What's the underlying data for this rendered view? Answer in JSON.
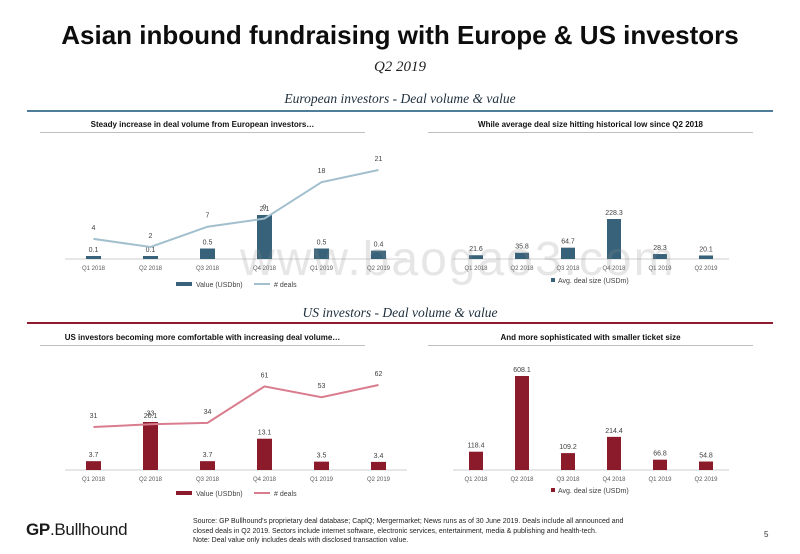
{
  "page": {
    "title": "Asian inbound fundraising with Europe & US investors",
    "subtitle": "Q2 2019",
    "watermark": "www.baogao3.com",
    "page_number": "5"
  },
  "sections": {
    "europe": {
      "title": "European investors - Deal volume & value",
      "color": "#4e7e99"
    },
    "us": {
      "title": "US investors - Deal volume & value",
      "color": "#8e1b2e"
    }
  },
  "footer": {
    "logo_bold": "GP",
    "logo_rest": ".Bullhound",
    "source_lines": [
      "Source: GP Bullhound's proprietary deal database; CapIQ; Mergermarket; News runs as of 30 June 2019. Deals include all announced and",
      "closed deals in Q2 2019. Sectors include internet software, electronic services, entertainment, media & publishing and health-tech.",
      "Note: Deal value only includes deals with disclosed transaction value."
    ]
  },
  "colors": {
    "europe_bar": "#37627a",
    "europe_line": "#a2bfce",
    "us_bar": "#8b1a2b",
    "us_line": "#d97d8e"
  },
  "chart_data": [
    {
      "id": "eu-volume",
      "type": "bar+line",
      "title": "Steady increase in deal volume from European investors…",
      "categories": [
        "Q1 2018",
        "Q2 2018",
        "Q3 2018",
        "Q4 2018",
        "Q1 2019",
        "Q2 2019"
      ],
      "series": [
        {
          "name": "Value (USDbn)",
          "type": "bar",
          "values": [
            0.1,
            0.1,
            0.5,
            2.1,
            0.5,
            0.4
          ]
        },
        {
          "name": "# deals",
          "type": "line",
          "values": [
            4,
            2,
            7,
            9,
            18,
            21
          ]
        }
      ],
      "legend": "bottom"
    },
    {
      "id": "eu-size",
      "type": "bar",
      "title": "While average deal size hitting historical low since Q2 2018",
      "categories": [
        "Q1 2018",
        "Q2 2018",
        "Q3 2018",
        "Q4 2018",
        "Q1 2019",
        "Q2 2019"
      ],
      "series": [
        {
          "name": "Avg. deal size (USDm)",
          "type": "bar",
          "values": [
            21.6,
            35.8,
            64.7,
            228.3,
            28.3,
            20.1
          ]
        }
      ],
      "legend": "bottom"
    },
    {
      "id": "us-volume",
      "type": "bar+line",
      "title": "US investors becoming more comfortable with increasing deal volume…",
      "categories": [
        "Q1 2018",
        "Q2 2018",
        "Q3 2018",
        "Q4 2018",
        "Q1 2019",
        "Q2 2019"
      ],
      "series": [
        {
          "name": "Value (USDbn)",
          "type": "bar",
          "values": [
            3.7,
            20.1,
            3.7,
            13.1,
            3.5,
            3.4
          ]
        },
        {
          "name": "# deals",
          "type": "line",
          "values": [
            31,
            33,
            34,
            61,
            53,
            62
          ]
        }
      ],
      "legend": "bottom"
    },
    {
      "id": "us-size",
      "type": "bar",
      "title": "And more sophisticated with smaller ticket size",
      "categories": [
        "Q1 2018",
        "Q2 2018",
        "Q3 2018",
        "Q4 2018",
        "Q1 2019",
        "Q2 2019"
      ],
      "series": [
        {
          "name": "Avg. deal size (USDm)",
          "type": "bar",
          "values": [
            118.4,
            608.1,
            109.2,
            214.4,
            66.8,
            54.8
          ]
        }
      ],
      "legend": "bottom"
    }
  ]
}
